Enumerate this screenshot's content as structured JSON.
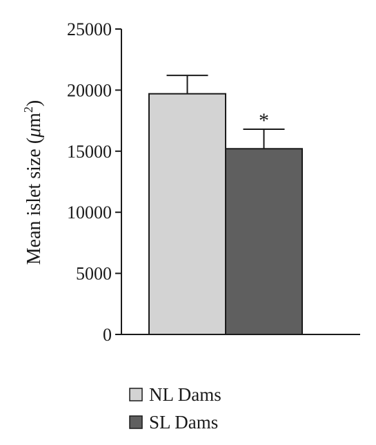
{
  "chart_data": {
    "type": "bar",
    "categories": [
      "NL Dams",
      "SL Dams"
    ],
    "values": [
      19700,
      15200
    ],
    "errors": [
      1500,
      1600
    ],
    "significance": [
      "",
      "*"
    ],
    "colors": [
      "#d3d3d3",
      "#5f5f5f"
    ],
    "ylabel": {
      "prefix": "Mean islet size (",
      "mu": "μ",
      "unit": "m",
      "exponent": "2",
      "suffix": ")"
    },
    "ylim": [
      0,
      25000
    ],
    "yticks": [
      "0",
      "5000",
      "10000",
      "15000",
      "20000",
      "25000"
    ],
    "legend": [
      {
        "label": "NL Dams",
        "color": "#d3d3d3"
      },
      {
        "label": "SL Dams",
        "color": "#5f5f5f"
      }
    ],
    "legend_position": "bottom",
    "grid": false
  }
}
